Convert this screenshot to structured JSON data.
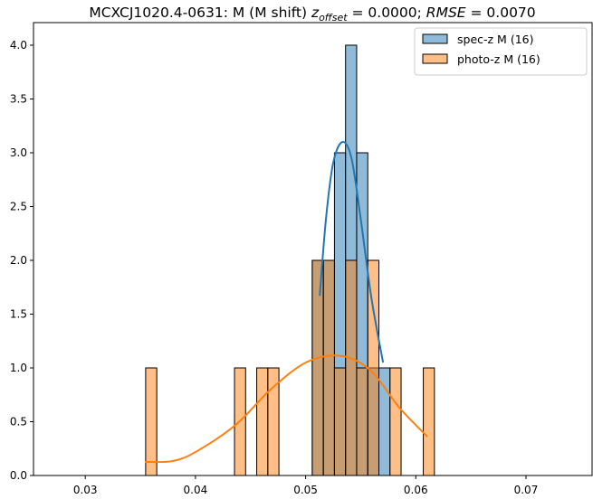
{
  "chart_data": {
    "type": "bar",
    "title_main": "MCXCJ1020.4-0631: M (M shift) ",
    "title_z": "z",
    "title_z_sub": "offset",
    "title_z_val": " = 0.0000; ",
    "title_rmse": "RMSE",
    "title_rmse_val": " = 0.0070",
    "xlabel": "",
    "ylabel": "",
    "xlim": [
      0.0253,
      0.076
    ],
    "ylim": [
      0,
      4.21
    ],
    "grid": false,
    "legend_position": "top-right",
    "xticks": [
      0.03,
      0.04,
      0.05,
      0.06,
      0.07
    ],
    "xtick_labels": [
      "0.03",
      "0.04",
      "0.05",
      "0.06",
      "0.07"
    ],
    "yticks": [
      0,
      0.5,
      1,
      1.5,
      2,
      2.5,
      3,
      3.5,
      4
    ],
    "ytick_labels": [
      "0.0",
      "0.5",
      "1.0",
      "1.5",
      "2.0",
      "2.5",
      "3.0",
      "3.5",
      "4.0"
    ],
    "bin_start": 0.03548,
    "bin_width": 0.001008,
    "zero_range": [
      0.0275,
      0.0735
    ],
    "series": [
      {
        "name": "spec-z M (16)",
        "color": "#1f77b4",
        "bins": [
          [
            15,
            2
          ],
          [
            16,
            2
          ],
          [
            17,
            3
          ],
          [
            18,
            4
          ],
          [
            19,
            3
          ],
          [
            20,
            1
          ],
          [
            21,
            1
          ]
        ],
        "kde": [
          [
            0.05128,
            1.67
          ],
          [
            0.05186,
            2.4
          ],
          [
            0.05251,
            2.91
          ],
          [
            0.05334,
            3.1
          ],
          [
            0.05416,
            2.95
          ],
          [
            0.05498,
            2.4
          ],
          [
            0.05597,
            1.65
          ],
          [
            0.05703,
            1.05
          ]
        ]
      },
      {
        "name": "photo-z M (16)",
        "color": "#ff7f0e",
        "bins": [
          [
            0,
            1
          ],
          [
            8,
            1
          ],
          [
            10,
            1
          ],
          [
            11,
            1
          ],
          [
            15,
            2
          ],
          [
            16,
            2
          ],
          [
            17,
            1
          ],
          [
            18,
            2
          ],
          [
            19,
            1
          ],
          [
            20,
            2
          ],
          [
            22,
            1
          ],
          [
            25,
            1
          ]
        ],
        "kde": [
          [
            0.03542,
            0.126
          ],
          [
            0.03789,
            0.134
          ],
          [
            0.04,
            0.218
          ],
          [
            0.04364,
            0.47
          ],
          [
            0.04693,
            0.81
          ],
          [
            0.05021,
            1.06
          ],
          [
            0.05334,
            1.11
          ],
          [
            0.05597,
            0.97
          ],
          [
            0.05843,
            0.64
          ],
          [
            0.06106,
            0.36
          ]
        ]
      }
    ]
  }
}
